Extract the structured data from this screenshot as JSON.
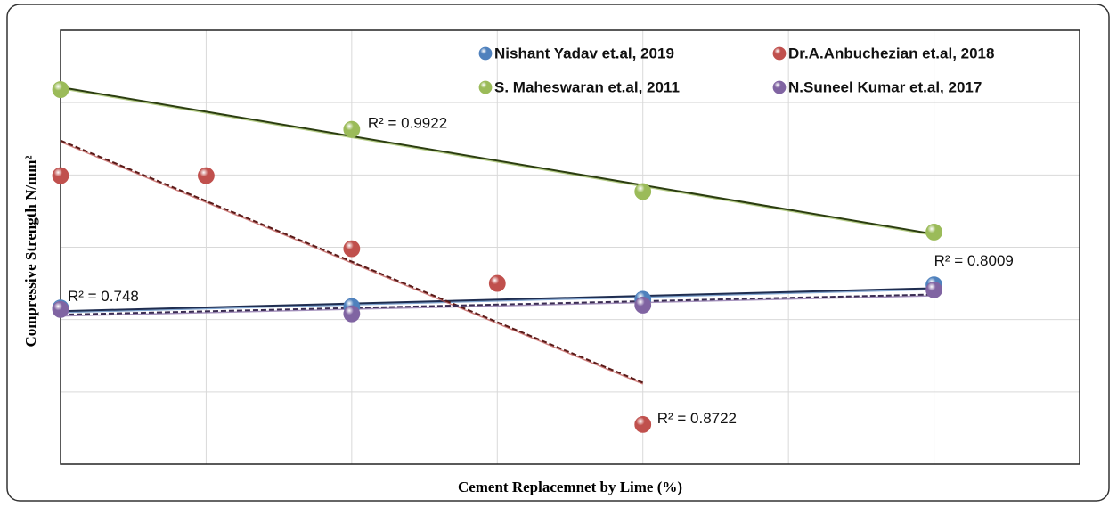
{
  "chart_data": {
    "type": "scatter",
    "x_label": "Cement Replacemnet by Lime (%)",
    "y_label": "Compressive Strength N/mm²",
    "xlim": [
      0,
      35
    ],
    "xticks": [
      0,
      5,
      10,
      15,
      20,
      25,
      30,
      35
    ],
    "ylim": [
      0,
      60
    ],
    "yticks": [
      0,
      10,
      20,
      30,
      40,
      50,
      60
    ],
    "grid": true,
    "series": [
      {
        "name": "Nishant Yadav et.al, 2019",
        "color": "#4f81bd",
        "trend_color": "#1f2d50",
        "x": [
          0,
          10,
          20,
          30
        ],
        "values": [
          21.6,
          21.8,
          22.8,
          24.8
        ],
        "r2": "R² = 0.8009"
      },
      {
        "name": "Dr.A.Anbuchezian et.al, 2018",
        "color": "#c0504d",
        "trend_color": "#5a1a18",
        "x": [
          0,
          5,
          10,
          15,
          20
        ],
        "values": [
          39.9,
          39.9,
          29.8,
          25.0,
          5.5
        ],
        "r2": "R² = 0.8722"
      },
      {
        "name": "S. Maheswaran et.al, 2011",
        "color": "#9bbb59",
        "trend_color": "#2b3d10",
        "x": [
          0,
          10,
          20,
          30
        ],
        "values": [
          51.8,
          46.3,
          37.7,
          32.1
        ],
        "r2": "R² = 0.9922"
      },
      {
        "name": "N.Suneel Kumar et.al, 2017",
        "color": "#8064a2",
        "trend_color": "#3a2c52",
        "x": [
          0,
          10,
          20,
          30
        ],
        "values": [
          21.4,
          20.8,
          22.0,
          24.1
        ],
        "r2": "R² = 0.748"
      }
    ]
  }
}
